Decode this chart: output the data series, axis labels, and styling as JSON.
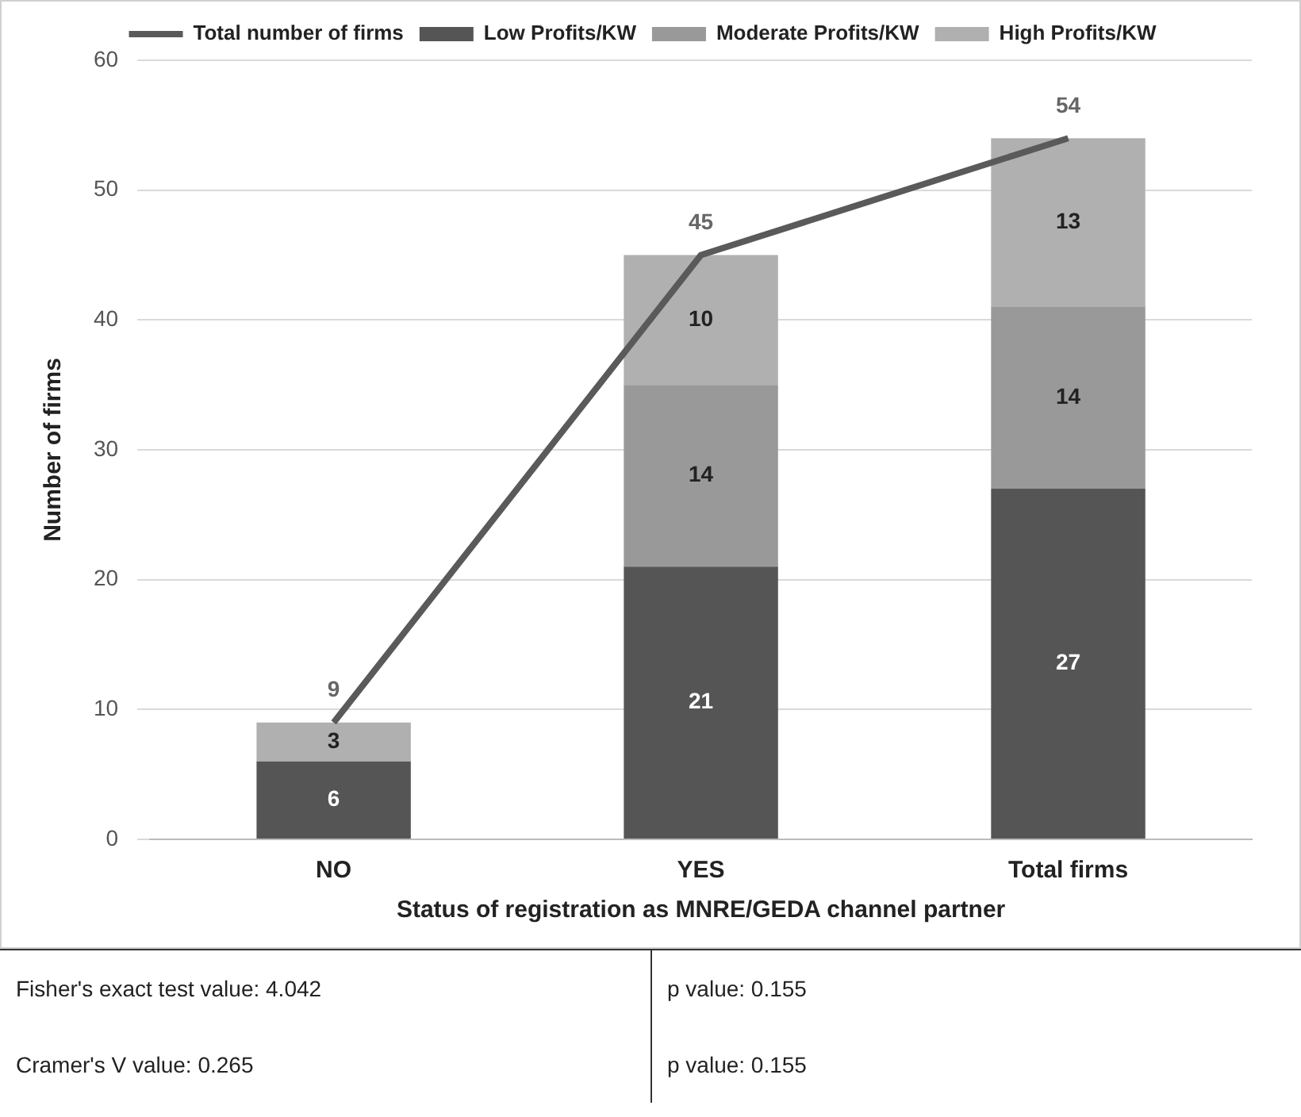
{
  "chart_data": {
    "type": "bar",
    "stacked": true,
    "xlabel": "Status of registration as MNRE/GEDA channel partner",
    "ylabel": "Number of firms",
    "categories": [
      "NO",
      "YES",
      "Total firms"
    ],
    "series": [
      {
        "name": "Low Profits/KW",
        "color": "#555555",
        "values": [
          6,
          21,
          27
        ]
      },
      {
        "name": "Moderate Profits/KW",
        "color": "#999999",
        "values": [
          null,
          14,
          14
        ]
      },
      {
        "name": "High Profits/KW",
        "color": "#b0b0b0",
        "values": [
          3,
          10,
          13
        ]
      },
      {
        "name": "Total number of firms",
        "type": "line",
        "color": "#5a5a5a",
        "values": [
          9,
          45,
          54
        ]
      }
    ],
    "ylim": [
      0,
      60
    ],
    "yticks": [
      0,
      10,
      20,
      30,
      40,
      50,
      60
    ],
    "grid": "y",
    "legend": "top",
    "marker": "none",
    "line_style": "solid",
    "data_labels": true,
    "annotations": [
      "Fisher's exact test value: 4.042",
      "p value: 0.155",
      "Cramer's V value: 0.265",
      "p value: 0.155"
    ]
  }
}
